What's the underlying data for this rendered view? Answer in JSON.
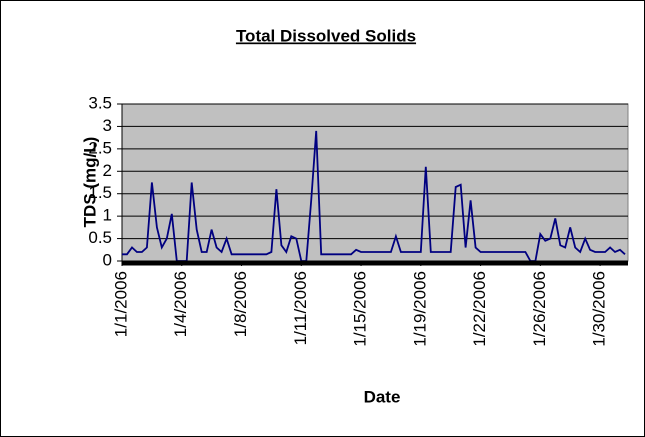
{
  "chart_data": {
    "type": "line",
    "title": "Total Dissolved Solids",
    "x_label": "Date",
    "y_label": "TDS (mg/L)",
    "categories": [
      "1/1/2006",
      null,
      null,
      null,
      null,
      null,
      null,
      null,
      null,
      null,
      null,
      null,
      "1/4/2006",
      null,
      null,
      null,
      null,
      null,
      null,
      null,
      null,
      null,
      null,
      null,
      "1/8/2006",
      null,
      null,
      null,
      null,
      null,
      null,
      null,
      null,
      null,
      null,
      null,
      "1/11/2006",
      null,
      null,
      null,
      null,
      null,
      null,
      null,
      null,
      null,
      null,
      null,
      "1/15/2006",
      null,
      null,
      null,
      null,
      null,
      null,
      null,
      null,
      null,
      null,
      null,
      "1/19/2006",
      null,
      null,
      null,
      null,
      null,
      null,
      null,
      null,
      null,
      null,
      null,
      "1/22/2006",
      null,
      null,
      null,
      null,
      null,
      null,
      null,
      null,
      null,
      null,
      null,
      "1/26/2006",
      null,
      null,
      null,
      null,
      null,
      null,
      null,
      null,
      null,
      null,
      null,
      "1/30/2006",
      null,
      null,
      null,
      null,
      null
    ],
    "values": [
      0.15,
      0.15,
      0.3,
      0.2,
      0.2,
      0.3,
      1.75,
      0.75,
      0.3,
      0.5,
      1.05,
      0,
      0,
      0,
      1.75,
      0.7,
      0.2,
      0.2,
      0.7,
      0.3,
      0.2,
      0.5,
      0.15,
      0.15,
      0.15,
      0.15,
      0.15,
      0.15,
      0.15,
      0.15,
      0.2,
      1.6,
      0.35,
      0.2,
      0.55,
      0.5,
      0,
      0,
      1.35,
      2.9,
      0.15,
      0.15,
      0.15,
      0.15,
      0.15,
      0.15,
      0.15,
      0.25,
      0.2,
      0.2,
      0.2,
      0.2,
      0.2,
      0.2,
      0.2,
      0.55,
      0.2,
      0.2,
      0.2,
      0.2,
      0.2,
      2.1,
      0.2,
      0.2,
      0.2,
      0.2,
      0.2,
      1.65,
      1.7,
      0.3,
      1.35,
      0.3,
      0.2,
      0.2,
      0.2,
      0.2,
      0.2,
      0.2,
      0.2,
      0.2,
      0.2,
      0.2,
      0,
      0,
      0.6,
      0.45,
      0.5,
      0.95,
      0.35,
      0.3,
      0.75,
      0.3,
      0.2,
      0.5,
      0.25,
      0.2,
      0.2,
      0.2,
      0.3,
      0.2,
      0.25,
      0.15
    ],
    "color": "#000080",
    "ylim": [
      0,
      3.5
    ],
    "yticks": [
      0,
      0.5,
      1,
      1.5,
      2,
      2.5,
      3,
      3.5
    ],
    "grid": true,
    "plot_background": "#c0c0c0"
  }
}
